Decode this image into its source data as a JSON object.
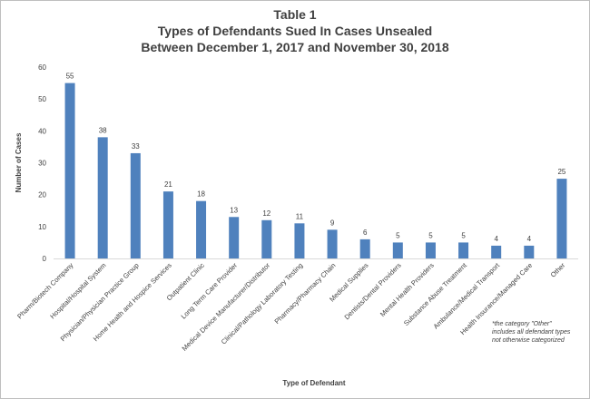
{
  "chart_data": {
    "type": "bar",
    "title_lines": [
      "Table 1",
      "Types of Defendants Sued In Cases Unsealed",
      "Between December 1, 2017 and November 30, 2018"
    ],
    "xlabel": "Type of Defendant",
    "ylabel": "Number of Cases",
    "ylim": [
      0,
      60
    ],
    "yticks": [
      "0",
      "10",
      "20",
      "30",
      "40",
      "50",
      "60"
    ],
    "grid": false,
    "bar_color": "#4f81bd",
    "categories": [
      "Pharm/Biotech Company",
      "Hospital/Hospital System",
      "Physician/Physician Practice Group",
      "Home Health and Hospice Services",
      "Outpatient Clinic",
      "Long Term Care Provider",
      "Medical Device Manufacturer/Distributor",
      "Clinical/Pathology Laboratory Testing",
      "Pharmacy/Pharmacy Chain",
      "Medical Supplies",
      "Dentists/Dental Providers",
      "Mental Health Providers",
      "Substance Abuse Treatment",
      "Ambulance/Medical Transport",
      "Health Insurance/Managed Care",
      "Other"
    ],
    "values": [
      55,
      38,
      33,
      21,
      18,
      13,
      12,
      11,
      9,
      6,
      5,
      5,
      5,
      4,
      4,
      25
    ],
    "data_labels": [
      "55",
      "38",
      "33",
      "21",
      "18",
      "13",
      "12",
      "11",
      "9",
      "6",
      "5",
      "5",
      "5",
      "4",
      "4",
      "25"
    ],
    "footnote_lines": [
      "*the category \"Other\"",
      "includes all defendant types",
      "not otherwise categorized"
    ]
  }
}
